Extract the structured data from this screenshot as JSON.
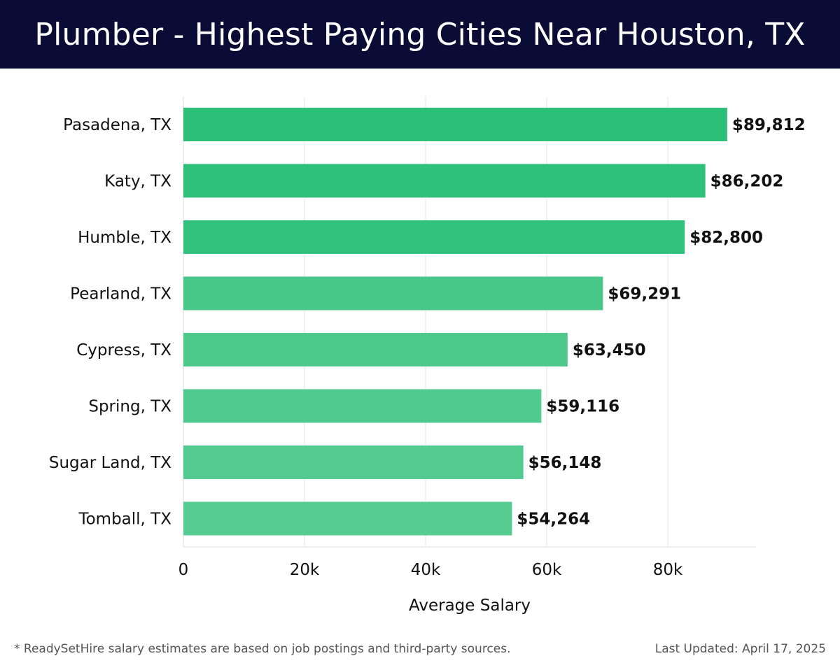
{
  "chart_data": {
    "type": "bar",
    "orientation": "horizontal",
    "title": "Plumber - Highest Paying Cities Near Houston, TX",
    "xlabel": "Average Salary",
    "ylabel": "",
    "xlim": [
      0,
      94500
    ],
    "x_ticks": [
      0,
      20000,
      40000,
      60000,
      80000
    ],
    "x_tick_labels": [
      "0",
      "20k",
      "40k",
      "60k",
      "80k"
    ],
    "grid": true,
    "categories": [
      "Pasadena, TX",
      "Katy, TX",
      "Humble, TX",
      "Pearland, TX",
      "Cypress, TX",
      "Spring, TX",
      "Sugar Land, TX",
      "Tomball, TX"
    ],
    "values": [
      89812,
      86202,
      82800,
      69291,
      63450,
      59116,
      56148,
      54264
    ],
    "value_labels": [
      "$89,812",
      "$86,202",
      "$82,800",
      "$69,291",
      "$63,450",
      "$59,116",
      "$56,148",
      "$54,264"
    ],
    "bar_colors": [
      "#2bbf78",
      "#2ec17a",
      "#32c27d",
      "#47c788",
      "#4cc98b",
      "#50ca8e",
      "#53cb90",
      "#56cc92"
    ]
  },
  "footer": {
    "note": "* ReadySetHire salary estimates are based on job postings and third-party sources.",
    "updated": "Last Updated: April 17, 2025"
  }
}
